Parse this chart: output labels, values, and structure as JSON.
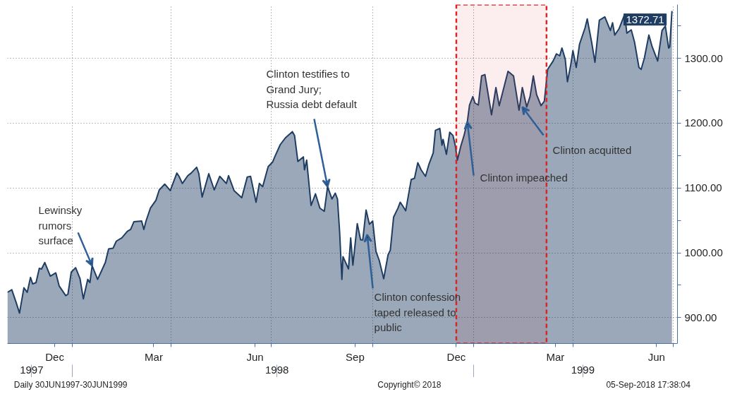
{
  "chart_data": {
    "type": "area",
    "x": [
      "1997-11-03",
      "1997-11-07",
      "1997-11-11",
      "1997-11-14",
      "1997-11-18",
      "1997-11-21",
      "1997-11-24",
      "1997-11-26",
      "1997-11-29",
      "1997-12-02",
      "1997-12-04",
      "1997-12-07",
      "1997-12-12",
      "1997-12-17",
      "1997-12-20",
      "1997-12-26",
      "1997-12-28",
      "1997-12-31",
      "1998-01-04",
      "1998-01-08",
      "1998-01-11",
      "1998-01-15",
      "1998-01-17",
      "1998-01-19",
      "1998-01-24",
      "1998-01-31",
      "1998-02-03",
      "1998-02-07",
      "1998-02-10",
      "1998-02-15",
      "1998-02-20",
      "1998-02-23",
      "1998-02-26",
      "1998-03-05",
      "1998-03-07",
      "1998-03-09",
      "1998-03-13",
      "1998-03-18",
      "1998-03-21",
      "1998-03-26",
      "1998-03-31",
      "1998-04-06",
      "1998-04-08",
      "1998-04-11",
      "1998-04-16",
      "1998-04-19",
      "1998-04-24",
      "1998-04-26",
      "1998-04-29",
      "1998-05-05",
      "1998-05-10",
      "1998-05-15",
      "1998-05-21",
      "1998-05-23",
      "1998-05-28",
      "1998-06-04",
      "1998-06-09",
      "1998-06-12",
      "1998-06-17",
      "1998-06-20",
      "1998-06-23",
      "1998-06-28",
      "1998-07-02",
      "1998-07-04",
      "1998-07-09",
      "1998-07-14",
      "1998-07-20",
      "1998-07-22",
      "1998-07-25",
      "1998-07-30",
      "1998-07-31",
      "1998-08-02",
      "1998-08-06",
      "1998-08-10",
      "1998-08-14",
      "1998-08-18",
      "1998-08-21",
      "1998-08-25",
      "1998-08-28",
      "1998-08-30",
      "1998-09-01",
      "1998-09-03",
      "1998-09-04",
      "1998-09-09",
      "1998-09-11",
      "1998-09-13",
      "1998-09-17",
      "1998-09-20",
      "1998-09-22",
      "1998-09-25",
      "1998-09-28",
      "1998-10-01",
      "1998-10-04",
      "1998-10-07",
      "1998-10-11",
      "1998-10-15",
      "1998-10-17",
      "1998-10-20",
      "1998-10-24",
      "1998-10-26",
      "1998-10-28",
      "1998-10-31",
      "1998-11-05",
      "1998-11-08",
      "1998-11-11",
      "1998-11-14",
      "1998-11-18",
      "1998-11-21",
      "1998-11-25",
      "1998-11-27",
      "1998-12-01",
      "1998-12-03",
      "1998-12-04",
      "1998-12-07",
      "1998-12-10",
      "1998-12-13",
      "1998-12-15",
      "1998-12-17",
      "1998-12-20",
      "1998-12-23",
      "1998-12-26",
      "1998-12-28",
      "1998-12-31",
      "1999-01-02",
      "1999-01-05",
      "1999-01-08",
      "1999-01-11",
      "1999-01-17",
      "1999-01-21",
      "1999-01-24",
      "1999-02-01",
      "1999-02-06",
      "1999-02-11",
      "1999-02-14",
      "1999-02-18",
      "1999-02-21",
      "1999-02-24",
      "1999-02-27",
      "1999-03-03",
      "1999-03-06",
      "1999-03-09",
      "1999-03-14",
      "1999-03-17",
      "1999-03-20",
      "1999-03-22",
      "1999-03-25",
      "1999-03-27",
      "1999-03-30",
      "1999-04-01",
      "1999-04-04",
      "1999-04-07",
      "1999-04-12",
      "1999-04-14",
      "1999-04-18",
      "1999-04-21",
      "1999-04-25",
      "1999-04-30",
      "1999-05-05",
      "1999-05-07",
      "1999-05-09",
      "1999-05-13",
      "1999-05-18",
      "1999-05-20",
      "1999-05-24",
      "1999-05-27",
      "1999-05-31",
      "1999-06-02",
      "1999-06-05",
      "1999-06-09",
      "1999-06-12",
      "1999-06-17",
      "1999-06-21",
      "1999-06-24",
      "1999-06-27",
      "1999-06-28",
      "1999-06-30"
    ],
    "series": [
      {
        "color": "#1f3d63",
        "values": [
          939,
          943,
          923,
          907,
          946,
          939,
          962,
          952,
          954,
          976,
          975,
          985,
          964,
          969,
          949,
          934,
          936,
          970,
          977,
          960,
          929,
          959,
          954,
          980,
          959,
          985,
          1006,
          1007,
          1018,
          1023,
          1033,
          1036,
          1048,
          1049,
          1036,
          1049,
          1069,
          1081,
          1097,
          1106,
          1096,
          1123,
          1118,
          1107,
          1119,
          1123,
          1132,
          1122,
          1086,
          1122,
          1097,
          1118,
          1107,
          1119,
          1096,
          1085,
          1117,
          1118,
          1078,
          1107,
          1102,
          1133,
          1140,
          1148,
          1167,
          1178,
          1187,
          1181,
          1141,
          1148,
          1128,
          1143,
          1073,
          1091,
          1069,
          1064,
          1102,
          1083,
          1092,
          1083,
          1031,
          959,
          994,
          975,
          1023,
          981,
          1045,
          1020,
          1020,
          1066,
          1044,
          1049,
          1002,
          988,
          960,
          997,
          1004,
          1055,
          1069,
          1078,
          1073,
          1065,
          1113,
          1115,
          1139,
          1128,
          1118,
          1136,
          1154,
          1189,
          1192,
          1166,
          1175,
          1152,
          1186,
          1181,
          1166,
          1143,
          1164,
          1181,
          1202,
          1228,
          1241,
          1231,
          1228,
          1273,
          1275,
          1213,
          1255,
          1227,
          1280,
          1273,
          1220,
          1255,
          1225,
          1241,
          1273,
          1244,
          1227,
          1234,
          1283,
          1296,
          1307,
          1304,
          1316,
          1299,
          1264,
          1290,
          1312,
          1286,
          1322,
          1347,
          1361,
          1325,
          1294,
          1359,
          1364,
          1343,
          1355,
          1336,
          1346,
          1368,
          1339,
          1344,
          1325,
          1286,
          1283,
          1301,
          1336,
          1318,
          1296,
          1343,
          1350,
          1316,
          1318,
          1373
        ]
      }
    ],
    "xlim": [
      "1997-11-03",
      "1999-07-05"
    ],
    "xticks": [
      {
        "value": "1997-12-16",
        "label": "Dec"
      },
      {
        "value": "1998-03-16",
        "label": "Mar"
      },
      {
        "value": "1998-06-16",
        "label": "Jun"
      },
      {
        "value": "1998-09-15",
        "label": "Sep"
      },
      {
        "value": "1998-12-16",
        "label": "Dec"
      },
      {
        "value": "1999-03-16",
        "label": "Mar"
      },
      {
        "value": "1999-06-16",
        "label": "Jun"
      },
      {
        "value": "1998-01-01",
        "label": null
      },
      {
        "value": "1998-04-01",
        "label": null
      },
      {
        "value": "1998-07-01",
        "label": null
      },
      {
        "value": "1998-10-01",
        "label": null
      },
      {
        "value": "1999-01-01",
        "label": null
      },
      {
        "value": "1999-04-01",
        "label": null
      },
      {
        "value": "1999-07-01",
        "label": null
      }
    ],
    "x2lim": [
      "1997-11-03",
      "1999-07-05"
    ],
    "x2ticks": [
      {
        "value": "1997-11-25",
        "label": "1997"
      },
      {
        "value": "1998-07-06",
        "label": "1998"
      },
      {
        "value": "1999-04-10",
        "label": "1999"
      },
      {
        "value": "1998-01-01",
        "label": null
      },
      {
        "value": "1999-01-01",
        "label": null
      }
    ],
    "ylim": [
      860,
      1383
    ],
    "yticks": [
      {
        "value": 900,
        "label": "900.00"
      },
      {
        "value": 1000,
        "label": "1000.00"
      },
      {
        "value": 1100,
        "label": "1100.00"
      },
      {
        "value": 1200,
        "label": "1200.00"
      },
      {
        "value": 1300,
        "label": "1300.00"
      },
      {
        "value": 950,
        "label": null
      },
      {
        "value": 1050,
        "label": null
      },
      {
        "value": 1150,
        "label": null
      },
      {
        "value": 1250,
        "label": null
      },
      {
        "value": 1350,
        "label": null
      }
    ],
    "grid": true,
    "bands": [
      {
        "axis": "x",
        "from": "1998-12-16",
        "to": "1999-03-08",
        "color": "#d62728",
        "label": null
      }
    ],
    "annotations": [
      {
        "text": "Lewinsky\nrumors\nsurface",
        "x": "1998-01-19",
        "y": 980
      },
      {
        "text": "Clinton testifies to\nGrand Jury;\nRussia debt default",
        "x": "1998-08-21",
        "y": 1102
      },
      {
        "text": "Clinton confession\ntaped released to\npublic",
        "x": "1998-09-26",
        "y": 1028
      },
      {
        "text": "Clinton impeached",
        "x": "1998-12-26",
        "y": 1202
      },
      {
        "text": "Clinton acquitted",
        "x": "1999-02-14",
        "y": 1225
      },
      {
        "text": "1372.71",
        "x": "1999-06-30",
        "y": 1373
      },
      "Daily 30JUN1997-30JUN1999",
      "Copyright© 2018",
      "05-Sep-2018 17:38:04"
    ]
  }
}
